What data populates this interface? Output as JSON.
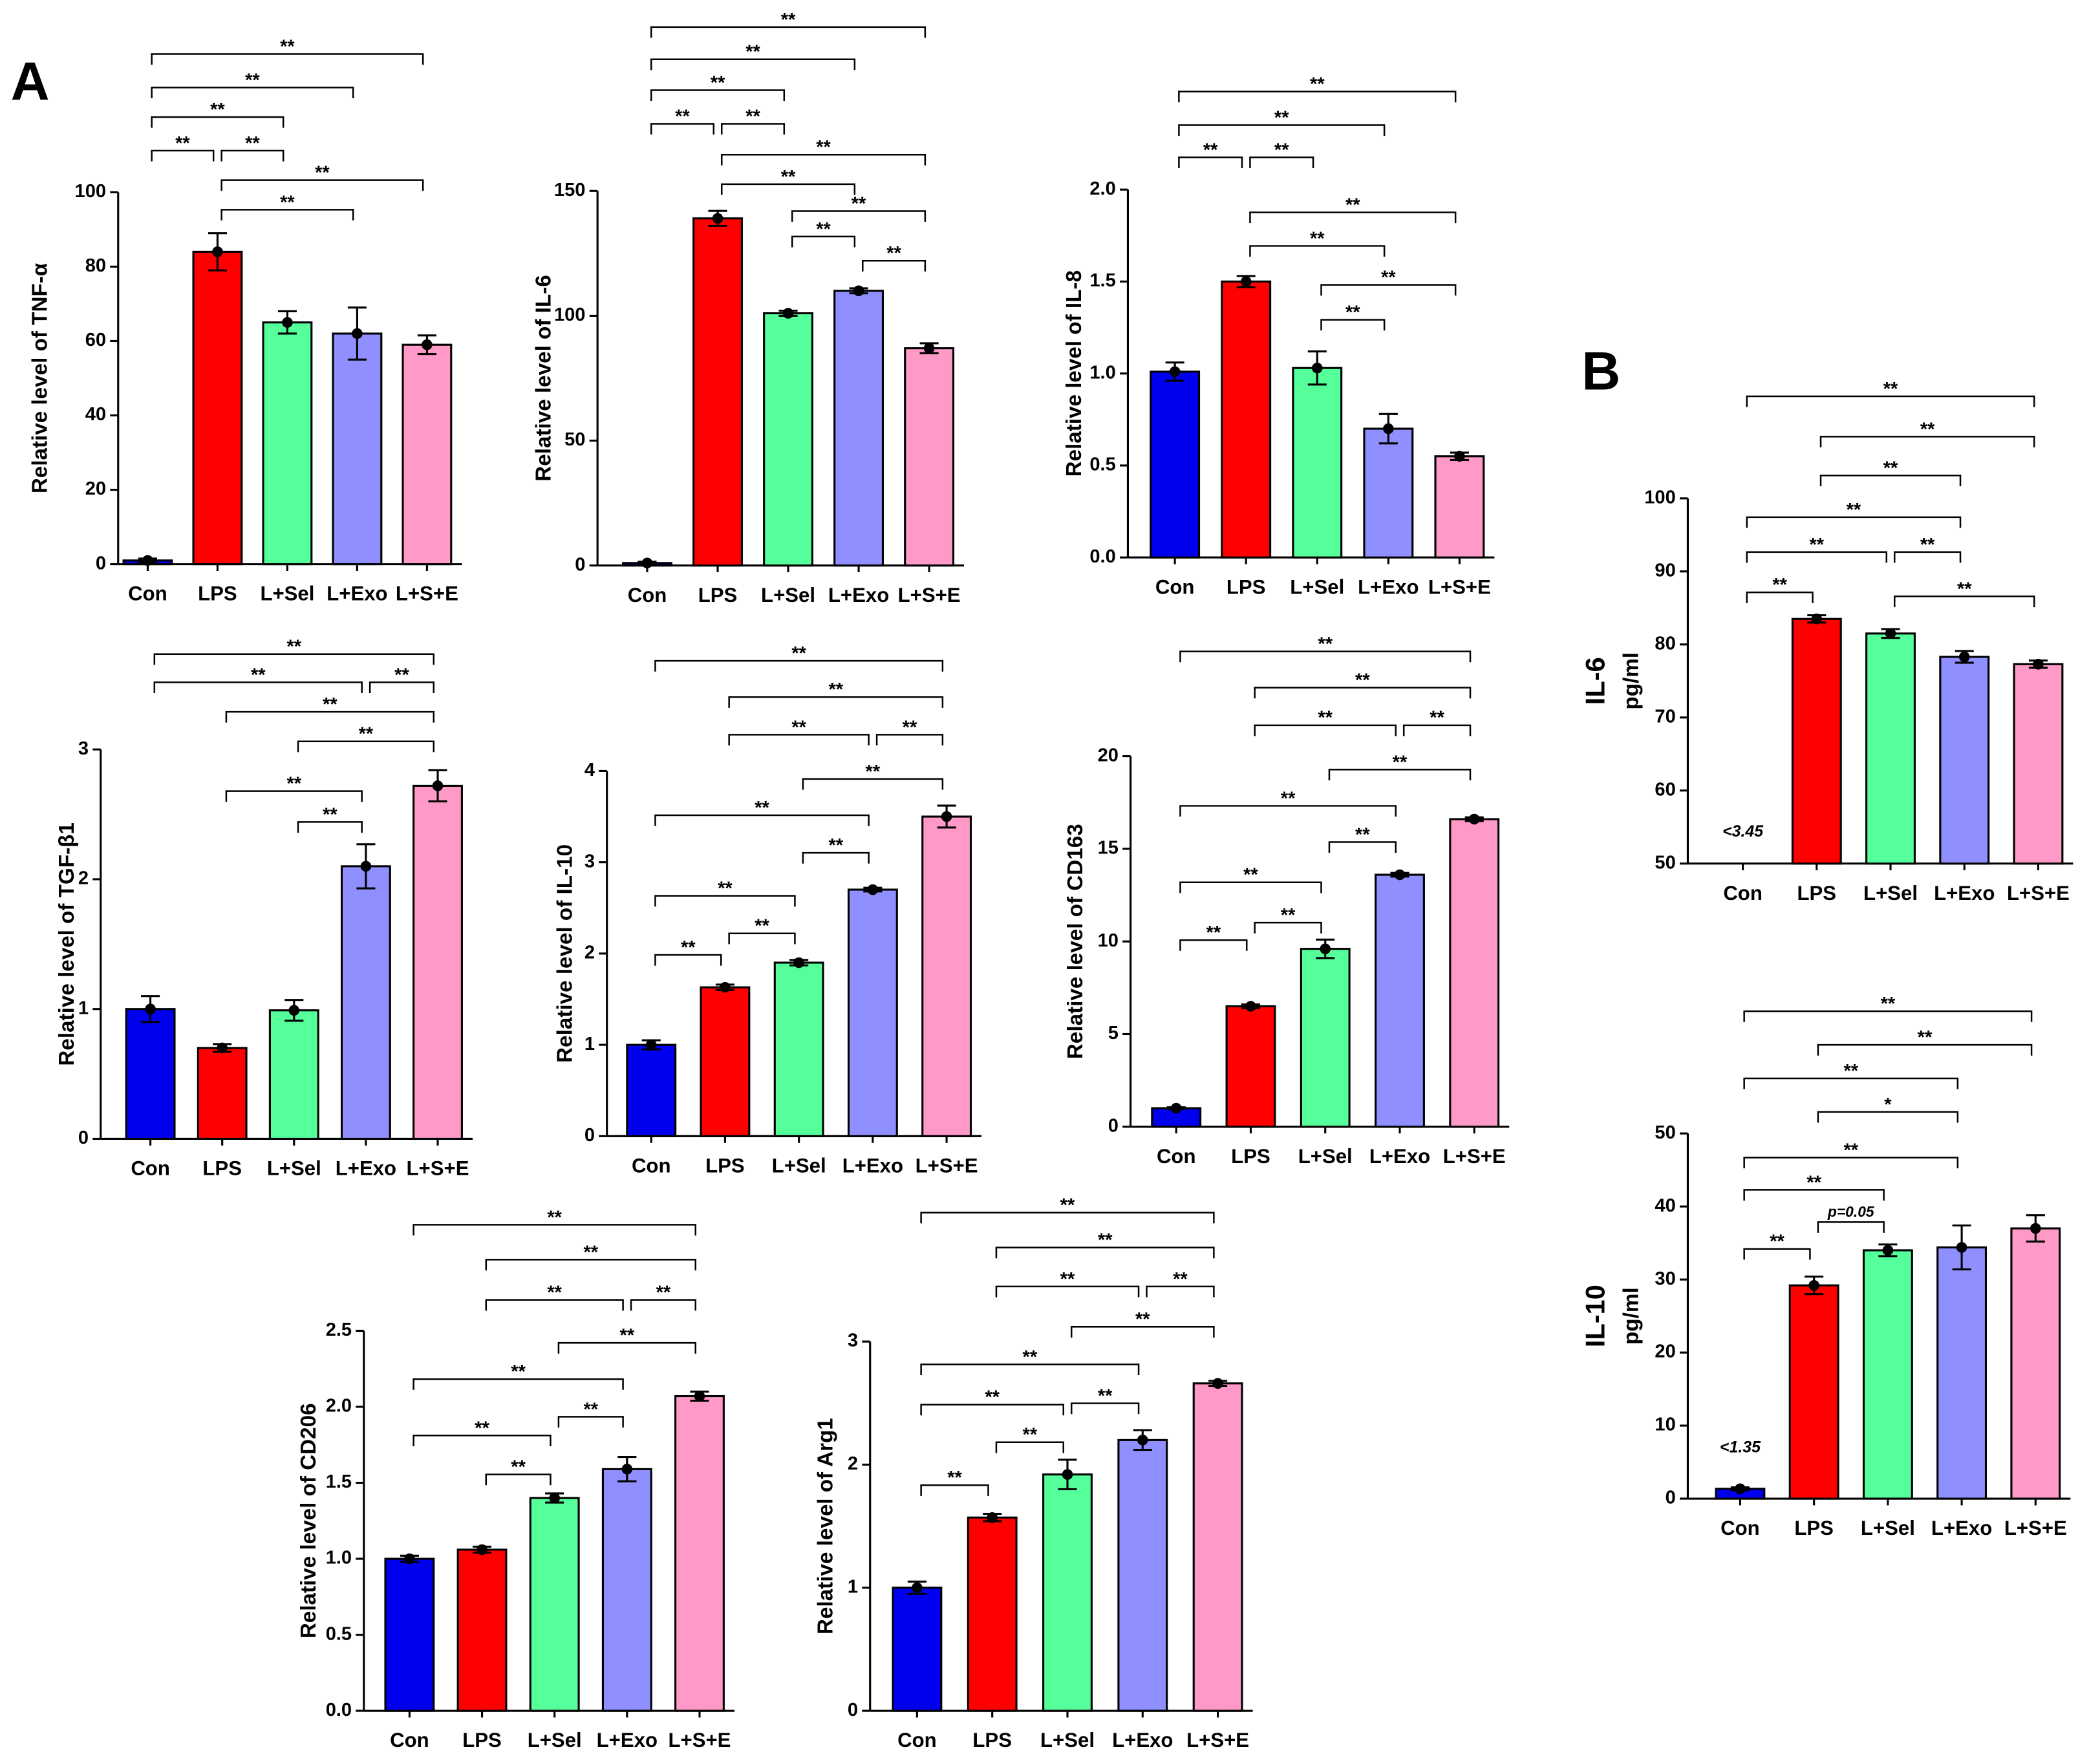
{
  "panels": [
    "A",
    "B"
  ],
  "chart_data": [
    {
      "type": "bar",
      "ylabel": "Relative level of TNF-α",
      "categories": [
        "Con",
        "LPS",
        "L+Sel",
        "L+Exo",
        "L+S+E"
      ],
      "colors": [
        "#0000ee",
        "#ff0000",
        "#55ff99",
        "#8f8fff",
        "#ff99c8"
      ],
      "values": [
        1,
        84,
        65,
        62,
        59
      ],
      "errors": [
        0.5,
        5,
        3,
        7,
        2.5
      ],
      "ylim": [
        0,
        100
      ],
      "yticks": [
        0,
        20,
        40,
        60,
        80,
        100
      ],
      "comparisons": [
        {
          "groups": [
            "Con",
            "LPS"
          ],
          "label": "**"
        },
        {
          "groups": [
            "LPS",
            "L+Sel"
          ],
          "label": "**"
        },
        {
          "groups": [
            "Con",
            "L+Sel"
          ],
          "label": "**"
        },
        {
          "groups": [
            "Con",
            "L+Exo"
          ],
          "label": "**"
        },
        {
          "groups": [
            "Con",
            "L+S+E"
          ],
          "label": "**"
        },
        {
          "groups": [
            "LPS",
            "L+S+E"
          ],
          "label": "**"
        },
        {
          "groups": [
            "LPS",
            "L+Exo"
          ],
          "label": "**"
        }
      ]
    },
    {
      "type": "bar",
      "ylabel": "Relative level of IL-6",
      "categories": [
        "Con",
        "LPS",
        "L+Sel",
        "L+Exo",
        "L+S+E"
      ],
      "colors": [
        "#0000ee",
        "#ff0000",
        "#55ff99",
        "#8f8fff",
        "#ff99c8"
      ],
      "values": [
        1,
        139,
        101,
        110,
        87
      ],
      "errors": [
        0.5,
        3,
        1,
        1,
        2
      ],
      "ylim": [
        0,
        150
      ],
      "yticks": [
        0,
        50,
        100,
        150
      ],
      "comparisons": [
        {
          "groups": [
            "Con",
            "LPS"
          ],
          "label": "**"
        },
        {
          "groups": [
            "LPS",
            "L+Sel"
          ],
          "label": "**"
        },
        {
          "groups": [
            "Con",
            "L+Sel"
          ],
          "label": "**"
        },
        {
          "groups": [
            "Con",
            "L+Exo"
          ],
          "label": "**"
        },
        {
          "groups": [
            "Con",
            "L+S+E"
          ],
          "label": "**"
        },
        {
          "groups": [
            "LPS",
            "L+S+E"
          ],
          "label": "**"
        },
        {
          "groups": [
            "LPS",
            "L+Exo"
          ],
          "label": "**"
        },
        {
          "groups": [
            "L+Sel",
            "L+S+E"
          ],
          "label": "**"
        },
        {
          "groups": [
            "L+Sel",
            "L+Exo"
          ],
          "label": "**"
        },
        {
          "groups": [
            "L+Exo",
            "L+S+E"
          ],
          "label": "**"
        }
      ]
    },
    {
      "type": "bar",
      "ylabel": "Relative level of IL-8",
      "categories": [
        "Con",
        "LPS",
        "L+Sel",
        "L+Exo",
        "L+S+E"
      ],
      "colors": [
        "#0000ee",
        "#ff0000",
        "#55ff99",
        "#8f8fff",
        "#ff99c8"
      ],
      "values": [
        1.01,
        1.5,
        1.03,
        0.7,
        0.55
      ],
      "errors": [
        0.05,
        0.03,
        0.09,
        0.08,
        0.02
      ],
      "ylim": [
        0,
        2
      ],
      "yticks": [
        {
          "value": 0,
          "label": "0.0"
        },
        0.5,
        {
          "value": 1,
          "label": "1.0"
        },
        1.5,
        {
          "value": 2,
          "label": "2.0"
        }
      ],
      "comparisons": [
        {
          "groups": [
            "Con",
            "LPS"
          ],
          "label": "**"
        },
        {
          "groups": [
            "LPS",
            "L+Sel"
          ],
          "label": "**"
        },
        {
          "groups": [
            "Con",
            "L+Exo"
          ],
          "label": "**"
        },
        {
          "groups": [
            "Con",
            "L+S+E"
          ],
          "label": "**"
        },
        {
          "groups": [
            "LPS",
            "L+S+E"
          ],
          "label": "**"
        },
        {
          "groups": [
            "LPS",
            "L+Exo"
          ],
          "label": "**"
        },
        {
          "groups": [
            "L+Sel",
            "L+S+E"
          ],
          "label": "**"
        },
        {
          "groups": [
            "L+Sel",
            "L+Exo"
          ],
          "label": "**"
        }
      ]
    },
    {
      "type": "bar",
      "ylabel": "Relative level of TGF-β1",
      "categories": [
        "Con",
        "LPS",
        "L+Sel",
        "L+Exo",
        "L+S+E"
      ],
      "colors": [
        "#0000ee",
        "#ff0000",
        "#55ff99",
        "#8f8fff",
        "#ff99c8"
      ],
      "values": [
        1.0,
        0.7,
        0.99,
        2.1,
        2.72
      ],
      "errors": [
        0.1,
        0.03,
        0.08,
        0.17,
        0.12
      ],
      "ylim": [
        0,
        3
      ],
      "yticks": [
        0,
        1,
        2,
        3
      ],
      "comparisons": [
        {
          "groups": [
            "Con",
            "L+S+E"
          ],
          "label": "**"
        },
        {
          "groups": [
            "Con",
            "L+Exo"
          ],
          "label": "**"
        },
        {
          "groups": [
            "L+Exo",
            "L+S+E"
          ],
          "label": "**"
        },
        {
          "groups": [
            "LPS",
            "L+S+E"
          ],
          "label": "**"
        },
        {
          "groups": [
            "L+Sel",
            "L+S+E"
          ],
          "label": "**"
        },
        {
          "groups": [
            "LPS",
            "L+Exo"
          ],
          "label": "**"
        },
        {
          "groups": [
            "L+Sel",
            "L+Exo"
          ],
          "label": "**"
        }
      ]
    },
    {
      "type": "bar",
      "ylabel": "Relative level of IL-10",
      "categories": [
        "Con",
        "LPS",
        "L+Sel",
        "L+Exo",
        "L+S+E"
      ],
      "colors": [
        "#0000ee",
        "#ff0000",
        "#55ff99",
        "#8f8fff",
        "#ff99c8"
      ],
      "values": [
        1.0,
        1.63,
        1.9,
        2.7,
        3.5
      ],
      "errors": [
        0.05,
        0.03,
        0.03,
        0.02,
        0.12
      ],
      "ylim": [
        0,
        4
      ],
      "yticks": [
        0,
        1,
        2,
        3,
        4
      ],
      "comparisons": [
        {
          "groups": [
            "Con",
            "L+S+E"
          ],
          "label": "**"
        },
        {
          "groups": [
            "LPS",
            "L+S+E"
          ],
          "label": "**"
        },
        {
          "groups": [
            "LPS",
            "L+Exo"
          ],
          "label": "**"
        },
        {
          "groups": [
            "L+Exo",
            "L+S+E"
          ],
          "label": "**"
        },
        {
          "groups": [
            "L+Sel",
            "L+S+E"
          ],
          "label": "**"
        },
        {
          "groups": [
            "Con",
            "L+Exo"
          ],
          "label": "**"
        },
        {
          "groups": [
            "L+Sel",
            "L+Exo"
          ],
          "label": "**"
        },
        {
          "groups": [
            "Con",
            "L+Sel"
          ],
          "label": "**"
        },
        {
          "groups": [
            "LPS",
            "L+Sel"
          ],
          "label": "**"
        },
        {
          "groups": [
            "Con",
            "LPS"
          ],
          "label": "**"
        }
      ]
    },
    {
      "type": "bar",
      "ylabel": "Relative level of CD163",
      "categories": [
        "Con",
        "LPS",
        "L+Sel",
        "L+Exo",
        "L+S+E"
      ],
      "colors": [
        "#0000ee",
        "#ff0000",
        "#55ff99",
        "#8f8fff",
        "#ff99c8"
      ],
      "values": [
        1.0,
        6.5,
        9.6,
        13.6,
        16.6
      ],
      "errors": [
        0.05,
        0.1,
        0.5,
        0.1,
        0.1
      ],
      "ylim": [
        0,
        20
      ],
      "yticks": [
        0,
        5,
        10,
        15,
        20
      ],
      "comparisons": [
        {
          "groups": [
            "Con",
            "L+S+E"
          ],
          "label": "**"
        },
        {
          "groups": [
            "LPS",
            "L+S+E"
          ],
          "label": "**"
        },
        {
          "groups": [
            "LPS",
            "L+Exo"
          ],
          "label": "**"
        },
        {
          "groups": [
            "L+Exo",
            "L+S+E"
          ],
          "label": "**"
        },
        {
          "groups": [
            "L+Sel",
            "L+S+E"
          ],
          "label": "**"
        },
        {
          "groups": [
            "Con",
            "L+Exo"
          ],
          "label": "**"
        },
        {
          "groups": [
            "L+Sel",
            "L+Exo"
          ],
          "label": "**"
        },
        {
          "groups": [
            "Con",
            "L+Sel"
          ],
          "label": "**"
        },
        {
          "groups": [
            "LPS",
            "L+Sel"
          ],
          "label": "**"
        },
        {
          "groups": [
            "Con",
            "LPS"
          ],
          "label": "**"
        }
      ]
    },
    {
      "type": "bar",
      "ylabel": "Relative level of CD206",
      "categories": [
        "Con",
        "LPS",
        "L+Sel",
        "L+Exo",
        "L+S+E"
      ],
      "colors": [
        "#0000ee",
        "#ff0000",
        "#55ff99",
        "#8f8fff",
        "#ff99c8"
      ],
      "values": [
        1.0,
        1.06,
        1.4,
        1.59,
        2.07
      ],
      "errors": [
        0.02,
        0.02,
        0.03,
        0.08,
        0.03
      ],
      "ylim": [
        0,
        2.5
      ],
      "yticks": [
        {
          "value": 0,
          "label": "0.0"
        },
        0.5,
        {
          "value": 1,
          "label": "1.0"
        },
        1.5,
        {
          "value": 2,
          "label": "2.0"
        },
        2.5
      ],
      "comparisons": [
        {
          "groups": [
            "Con",
            "L+S+E"
          ],
          "label": "**"
        },
        {
          "groups": [
            "LPS",
            "L+S+E"
          ],
          "label": "**"
        },
        {
          "groups": [
            "LPS",
            "L+Exo"
          ],
          "label": "**"
        },
        {
          "groups": [
            "L+Exo",
            "L+S+E"
          ],
          "label": "**"
        },
        {
          "groups": [
            "L+Sel",
            "L+S+E"
          ],
          "label": "**"
        },
        {
          "groups": [
            "Con",
            "L+Exo"
          ],
          "label": "**"
        },
        {
          "groups": [
            "L+Sel",
            "L+Exo"
          ],
          "label": "**"
        },
        {
          "groups": [
            "Con",
            "L+Sel"
          ],
          "label": "**"
        },
        {
          "groups": [
            "LPS",
            "L+Sel"
          ],
          "label": "**"
        }
      ]
    },
    {
      "type": "bar",
      "ylabel": "Relative level of Arg1",
      "categories": [
        "Con",
        "LPS",
        "L+Sel",
        "L+Exo",
        "L+S+E"
      ],
      "colors": [
        "#0000ee",
        "#ff0000",
        "#55ff99",
        "#8f8fff",
        "#ff99c8"
      ],
      "values": [
        1.0,
        1.57,
        1.92,
        2.2,
        2.66
      ],
      "errors": [
        0.05,
        0.03,
        0.12,
        0.08,
        0.02
      ],
      "ylim": [
        0,
        3
      ],
      "yticks": [
        0,
        1,
        2,
        3
      ],
      "comparisons": [
        {
          "groups": [
            "Con",
            "L+S+E"
          ],
          "label": "**"
        },
        {
          "groups": [
            "LPS",
            "L+S+E"
          ],
          "label": "**"
        },
        {
          "groups": [
            "LPS",
            "L+Exo"
          ],
          "label": "**"
        },
        {
          "groups": [
            "L+Exo",
            "L+S+E"
          ],
          "label": "**"
        },
        {
          "groups": [
            "L+Sel",
            "L+S+E"
          ],
          "label": "**"
        },
        {
          "groups": [
            "Con",
            "L+Exo"
          ],
          "label": "**"
        },
        {
          "groups": [
            "L+Sel",
            "L+Exo"
          ],
          "label": "**"
        },
        {
          "groups": [
            "Con",
            "L+Sel"
          ],
          "label": "**"
        },
        {
          "groups": [
            "LPS",
            "L+Sel"
          ],
          "label": "**"
        },
        {
          "groups": [
            "Con",
            "LPS"
          ],
          "label": "**"
        }
      ]
    },
    {
      "type": "bar",
      "ylabel": "IL-6",
      "yunit": "pg/ml",
      "categories": [
        "Con",
        "LPS",
        "L+Sel",
        "L+Exo",
        "L+S+E"
      ],
      "colors": [
        "#0000ee",
        "#ff0000",
        "#55ff99",
        "#8f8fff",
        "#ff99c8"
      ],
      "values": [
        null,
        83.5,
        81.5,
        78.3,
        77.3
      ],
      "errors": [
        null,
        0.5,
        0.6,
        0.8,
        0.5
      ],
      "ylim": [
        50,
        100
      ],
      "yticks": [
        50,
        60,
        70,
        80,
        90,
        100
      ],
      "annotations": [
        {
          "category": "Con",
          "text": "<3.45"
        }
      ],
      "comparisons": [
        {
          "groups": [
            "Con",
            "L+S+E"
          ],
          "label": "**"
        },
        {
          "groups": [
            "LPS",
            "L+S+E"
          ],
          "label": "**"
        },
        {
          "groups": [
            "LPS",
            "L+Exo"
          ],
          "label": "**"
        },
        {
          "groups": [
            "Con",
            "L+Exo"
          ],
          "label": "**"
        },
        {
          "groups": [
            "Con",
            "L+Sel"
          ],
          "label": "**"
        },
        {
          "groups": [
            "L+Sel",
            "L+Exo"
          ],
          "label": "**"
        },
        {
          "groups": [
            "Con",
            "LPS"
          ],
          "label": "**"
        },
        {
          "groups": [
            "L+Sel",
            "L+S+E"
          ],
          "label": "**"
        }
      ]
    },
    {
      "type": "bar",
      "ylabel": "IL-10",
      "yunit": "pg/ml",
      "categories": [
        "Con",
        "LPS",
        "L+Sel",
        "L+Exo",
        "L+S+E"
      ],
      "colors": [
        "#0000ee",
        "#ff0000",
        "#55ff99",
        "#8f8fff",
        "#ff99c8"
      ],
      "values": [
        1.35,
        29.2,
        34,
        34.4,
        37
      ],
      "errors": [
        0.2,
        1.2,
        0.8,
        3,
        1.8
      ],
      "ylim": [
        0,
        50
      ],
      "yticks": [
        0,
        10,
        20,
        30,
        40,
        50
      ],
      "annotations": [
        {
          "category": "Con",
          "text": "<1.35"
        }
      ],
      "comparisons": [
        {
          "groups": [
            "Con",
            "L+S+E"
          ],
          "label": "**"
        },
        {
          "groups": [
            "LPS",
            "L+S+E"
          ],
          "label": "**"
        },
        {
          "groups": [
            "Con",
            "L+Exo"
          ],
          "label": "**"
        },
        {
          "groups": [
            "LPS",
            "L+Exo"
          ],
          "label": "*"
        },
        {
          "groups": [
            "Con",
            "L+Exo"
          ],
          "label": "**"
        },
        {
          "groups": [
            "Con",
            "L+Sel"
          ],
          "label": "**"
        },
        {
          "groups": [
            "LPS",
            "L+Sel"
          ],
          "label": "p=0.05"
        },
        {
          "groups": [
            "Con",
            "LPS"
          ],
          "label": "**"
        }
      ]
    }
  ]
}
